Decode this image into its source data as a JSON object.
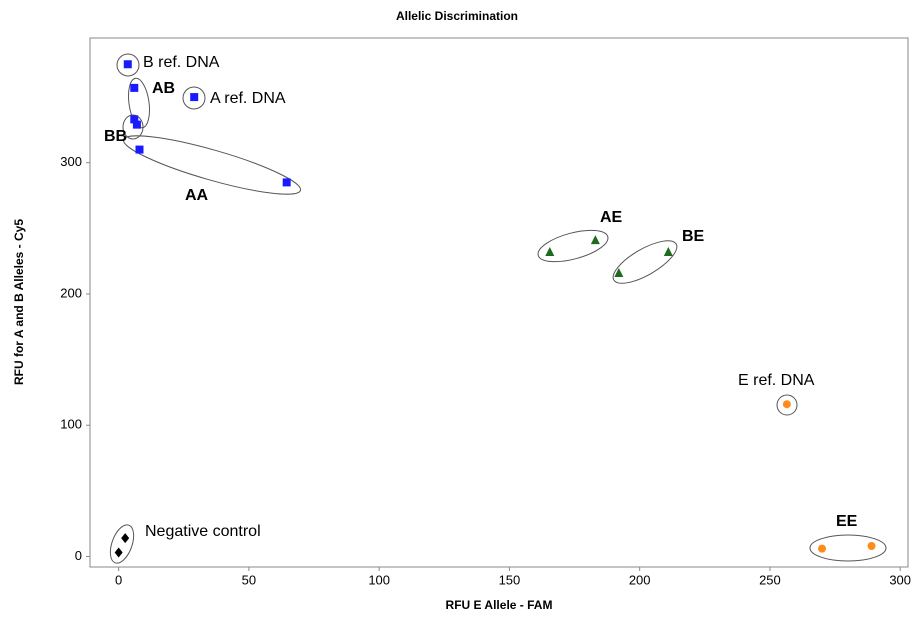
{
  "chart_data": {
    "type": "scatter",
    "title": "Allelic Discrimination",
    "x_label": "RFU E Allele - FAM",
    "y_label": "RFU for A and B Alleles - Cy5",
    "xlim": [
      -11,
      303
    ],
    "ylim": [
      -8,
      395
    ],
    "xticks": [
      0,
      50,
      100,
      150,
      200,
      250,
      300
    ],
    "yticks": [
      0,
      100,
      200,
      300
    ],
    "grid": false,
    "series": [
      {
        "color": "#1a1aff",
        "marker": "square",
        "x": [
          3.5,
          6,
          29,
          6,
          7,
          8,
          64.5
        ],
        "values": [
          375,
          357,
          350,
          333,
          329,
          310,
          285
        ]
      },
      {
        "color": "#1e6b1e",
        "marker": "triangle",
        "x": [
          165.5,
          183,
          192,
          211
        ],
        "values": [
          232,
          241,
          216,
          232
        ]
      },
      {
        "color": "#ff8c1a",
        "marker": "circle",
        "x": [
          256.5,
          270,
          289
        ],
        "values": [
          116,
          6,
          8
        ]
      },
      {
        "color": "#000000",
        "marker": "diamond",
        "x": [
          2.5,
          0
        ],
        "values": [
          14,
          3
        ]
      }
    ],
    "annotations": [
      "B ref. DNA",
      "AB",
      "A ref. DNA",
      "BB",
      "AA",
      "AE",
      "BE",
      "E ref. DNA",
      "EE",
      "Negative control"
    ]
  }
}
